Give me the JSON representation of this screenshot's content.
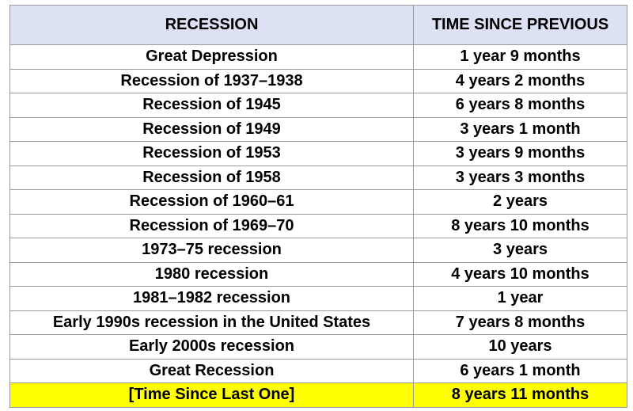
{
  "table": {
    "header": [
      "RECESSION",
      "TIME SINCE PREVIOUS"
    ],
    "rows": [
      [
        "Great Depression",
        "1 year 9 months"
      ],
      [
        "Recession of 1937–1938",
        "4 years 2 months"
      ],
      [
        "Recession of 1945",
        "6 years 8 months"
      ],
      [
        "Recession of 1949",
        "3 years 1 month"
      ],
      [
        "Recession of 1953",
        "3 years 9 months"
      ],
      [
        "Recession of 1958",
        "3 years 3 months"
      ],
      [
        "Recession of 1960–61",
        "2 years"
      ],
      [
        "Recession of 1969–70",
        "8 years 10 months"
      ],
      [
        "1973–75 recession",
        "3 years"
      ],
      [
        "1980 recession",
        "4 years 10 months"
      ],
      [
        "1981–1982 recession",
        "1 year"
      ],
      [
        "Early 1990s recession in the United States",
        "7 years 8 months"
      ],
      [
        "Early 2000s recession",
        "10 years"
      ],
      [
        "Great Recession",
        "6 years 1 month"
      ],
      [
        "[Time Since Last One]",
        "8 years 11 months"
      ]
    ]
  }
}
